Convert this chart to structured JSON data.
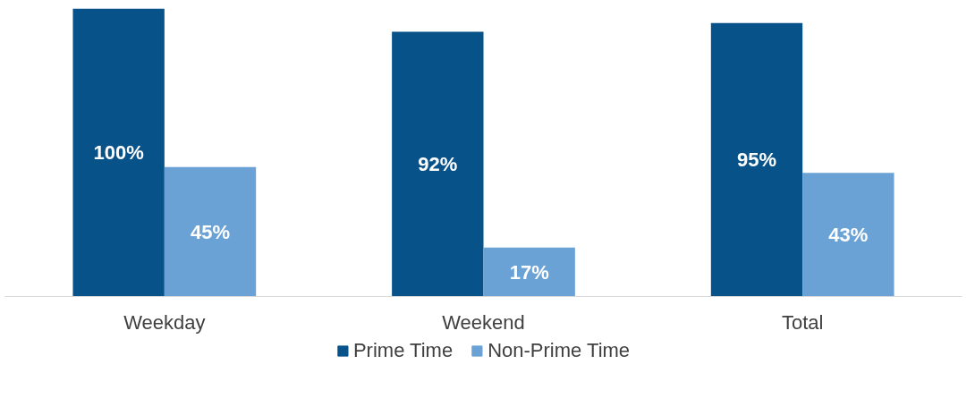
{
  "chart_data": {
    "type": "bar",
    "categories": [
      "Weekday",
      "Weekend",
      "Total"
    ],
    "series": [
      {
        "name": "Prime Time",
        "color": "#08528a",
        "values": [
          100,
          92,
          95
        ],
        "value_labels": [
          "100%",
          "92%",
          "95%"
        ]
      },
      {
        "name": "Non-Prime Time",
        "color": "#6aa2d5",
        "values": [
          45,
          17,
          43
        ],
        "value_labels": [
          "45%",
          "17%",
          "43%"
        ]
      }
    ],
    "tick_labels": "x",
    "legend": "bottom"
  }
}
